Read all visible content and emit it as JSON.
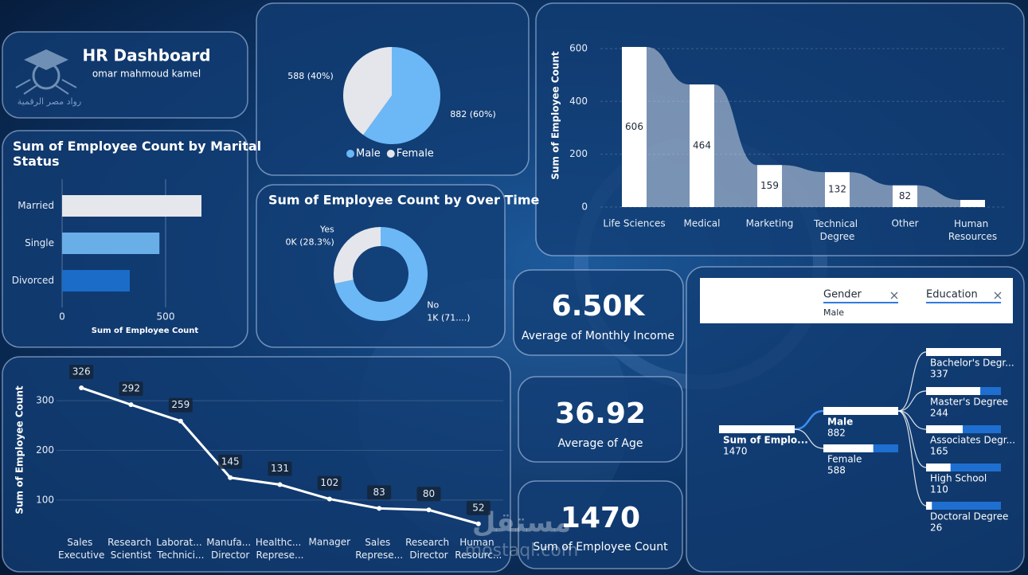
{
  "header": {
    "title": "HR Dashboard",
    "subtitle": "omar mahmoud kamel",
    "logo_text": "رواد مصر الرقمية"
  },
  "watermark": {
    "arabic": "مستقل",
    "latin": "mostaql.com"
  },
  "chart_data": [
    {
      "type": "pie",
      "categories": [
        "Male",
        "Female"
      ],
      "values": [
        882,
        588
      ],
      "value_labels": [
        "882 (60%)",
        "588 (40%)"
      ],
      "colors": [
        "#6cb8f6",
        "#e4e6ec"
      ],
      "legend": "bottom"
    },
    {
      "type": "bar",
      "orientation": "horizontal",
      "title": "Sum of Employee Count by Marital Status",
      "categories": [
        "Married",
        "Single",
        "Divorced"
      ],
      "values": [
        673,
        470,
        327
      ],
      "colors": [
        "#e6e7ec",
        "#6aaee8",
        "#1a6cc8"
      ],
      "xlim": [
        0,
        800
      ],
      "xticks": [
        0,
        500
      ],
      "xlabel": "Sum of Employee Count",
      "grid": true
    },
    {
      "type": "donut",
      "title": "Sum of Employee Count by Over Time",
      "categories": [
        "No",
        "Yes"
      ],
      "values": [
        1054,
        416
      ],
      "value_labels": [
        "1K (71....)",
        "0K (28.3%)"
      ],
      "colors": [
        "#6cb8f6",
        "#e4e6ec"
      ]
    },
    {
      "type": "bar",
      "orientation": "vertical",
      "categories": [
        "Life Sciences",
        "Medical",
        "Marketing",
        "Technical Degree",
        "Other",
        "Human Resources"
      ],
      "values": [
        606,
        464,
        159,
        132,
        82,
        27
      ],
      "color": "#ffffff",
      "ylim": [
        0,
        630
      ],
      "yticks": [
        0,
        200,
        400,
        600
      ],
      "ylabel": "Sum of Employee Count",
      "grid": true
    },
    {
      "type": "line",
      "categories": [
        "Sales Executive",
        "Research Scientist",
        "Laborat... Technici...",
        "Manufa... Director",
        "Healthc... Represe...",
        "Manager",
        "Sales Represe...",
        "Research Director",
        "Human Resourc..."
      ],
      "values": [
        326,
        292,
        259,
        145,
        131,
        102,
        83,
        80,
        52
      ],
      "color": "#ffffff",
      "ylim": [
        50,
        350
      ],
      "yticks": [
        100,
        200,
        300
      ],
      "ylabel": "Sum of Employee Count",
      "grid": true
    }
  ],
  "cards": [
    {
      "value": "6.50K",
      "label": "Average of Monthly Income"
    },
    {
      "value": "36.92",
      "label": "Average of Age"
    },
    {
      "value": "1470",
      "label": "Sum of Employee Count"
    }
  ],
  "decomposition_tree": {
    "filters": [
      {
        "field": "Gender",
        "value": "Male"
      },
      {
        "field": "Education"
      }
    ],
    "root": {
      "label": "Sum of Emplo...",
      "value": 1470
    },
    "level1": [
      {
        "label": "Male",
        "value": 882
      },
      {
        "label": "Female",
        "value": 588
      }
    ],
    "level2": [
      {
        "label": "Bachelor's Degr...",
        "value": 337
      },
      {
        "label": "Master's Degree",
        "value": 244
      },
      {
        "label": "Associates Degr...",
        "value": 165
      },
      {
        "label": "High School",
        "value": 110
      },
      {
        "label": "Doctoral Degree",
        "value": 26
      }
    ]
  }
}
